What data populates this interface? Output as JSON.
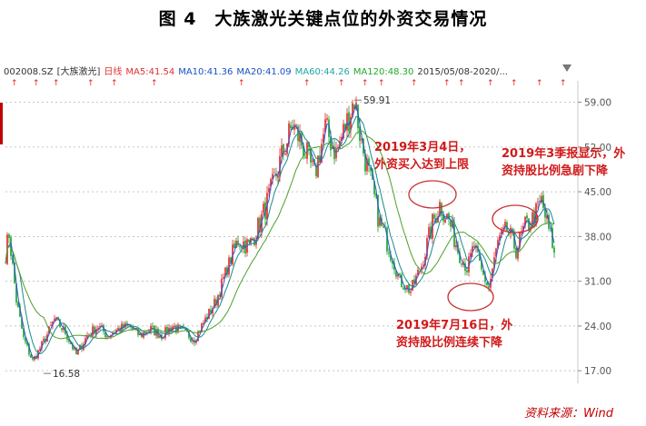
{
  "figure": {
    "title": "图 4　大族激光关键点位的外资交易情况",
    "source": "资料来源：Wind"
  },
  "indicator_bar": {
    "items": [
      {
        "text": "002008.SZ",
        "color": "#333333"
      },
      {
        "text": "[大族激光]",
        "color": "#333333"
      },
      {
        "text": "日线",
        "color": "#e03030"
      },
      {
        "text": "MA5:41.54",
        "color": "#e03030"
      },
      {
        "text": "MA10:41.36",
        "color": "#1a4fc8"
      },
      {
        "text": "MA20:41.09",
        "color": "#1a4fc8"
      },
      {
        "text": "MA60:44.26",
        "color": "#1fa5a5"
      },
      {
        "text": "MA120:48.30",
        "color": "#21a82a"
      },
      {
        "text": "2015/05/08-2020/...",
        "color": "#333333"
      }
    ]
  },
  "colors": {
    "up_candle": "#e32020",
    "down_candle": "#13a024",
    "ma5": "#2b56d6",
    "ma10": "#1a8a8a",
    "ma20": "#4d9f2b",
    "annotation": "#d11a1a",
    "circle": "#c83232"
  },
  "chart_data": {
    "type": "candlestick",
    "instrument": "002008.SZ [大族激光]",
    "period": "日线",
    "date_range": "2015/05/08-2020/...",
    "y_ticks": [
      59.0,
      52.0,
      45.0,
      38.0,
      31.0,
      24.0,
      17.0
    ],
    "ylim": [
      15.6,
      61.5
    ],
    "price_anchors": [
      [
        0,
        30.5
      ],
      [
        10,
        38.5
      ],
      [
        18,
        28
      ],
      [
        26,
        22
      ],
      [
        36,
        18.5
      ],
      [
        48,
        21.5
      ],
      [
        60,
        25
      ],
      [
        72,
        23
      ],
      [
        84,
        19.5
      ],
      [
        96,
        22.5
      ],
      [
        108,
        24
      ],
      [
        118,
        22.5
      ],
      [
        130,
        23.5
      ],
      [
        142,
        24
      ],
      [
        154,
        22.5
      ],
      [
        166,
        23.5
      ],
      [
        178,
        22.5
      ],
      [
        190,
        24
      ],
      [
        202,
        23
      ],
      [
        214,
        22
      ],
      [
        226,
        25
      ],
      [
        238,
        28
      ],
      [
        250,
        33
      ],
      [
        262,
        37.5
      ],
      [
        274,
        36.5
      ],
      [
        286,
        40
      ],
      [
        298,
        45
      ],
      [
        310,
        50.5
      ],
      [
        322,
        55.5
      ],
      [
        334,
        52
      ],
      [
        346,
        47.5
      ],
      [
        358,
        55
      ],
      [
        370,
        51
      ],
      [
        382,
        56
      ],
      [
        390,
        59.5
      ],
      [
        398,
        52.5
      ],
      [
        408,
        46.5
      ],
      [
        418,
        40
      ],
      [
        428,
        36.5
      ],
      [
        440,
        31
      ],
      [
        452,
        29.5
      ],
      [
        464,
        33.5
      ],
      [
        476,
        40
      ],
      [
        484,
        43
      ],
      [
        494,
        40.5
      ],
      [
        504,
        36
      ],
      [
        514,
        33
      ],
      [
        522,
        36.5
      ],
      [
        530,
        32.5
      ],
      [
        538,
        30
      ],
      [
        548,
        37
      ],
      [
        558,
        39
      ],
      [
        568,
        36
      ],
      [
        578,
        39.5
      ],
      [
        588,
        41
      ],
      [
        596,
        43.5
      ],
      [
        602,
        40
      ],
      [
        608,
        37
      ],
      [
        612,
        33
      ]
    ],
    "annotations": [
      {
        "text_lines": [
          "2019年3月4日，",
          "外资买入达到上限"
        ]
      },
      {
        "text_lines": [
          "2019年3季报显示，外",
          "资持股比例急剧下降"
        ]
      },
      {
        "text_lines": [
          "2019年7月16日，外",
          "资持股比例连续下降"
        ]
      }
    ],
    "point_labels": [
      {
        "text": "59.91",
        "price": 59.91
      },
      {
        "text": "16.58",
        "price": 16.58
      }
    ]
  }
}
